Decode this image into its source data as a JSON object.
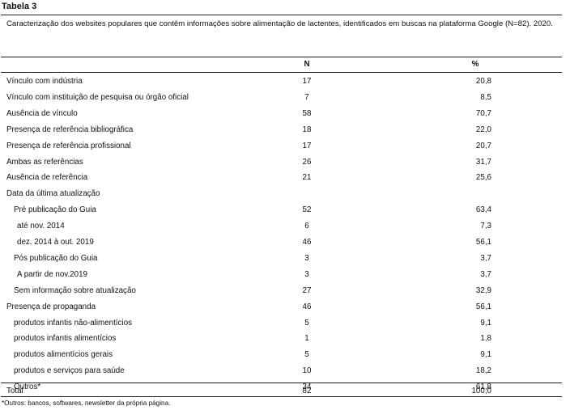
{
  "title": "Tabela 3",
  "caption": "Caracterização dos websites populares que contêm informações sobre alimentação de lactentes, identificados em buscas na plataforma Google (N=82). 2020.",
  "columns": {
    "n": "N",
    "pct": "%"
  },
  "rows": [
    {
      "label": "Vínculo com indústria",
      "n": "17",
      "pct": "20,8",
      "indent": 0
    },
    {
      "label": "Vínculo com instituição de pesquisa ou órgão oficial",
      "n": "7",
      "pct": "8,5",
      "indent": 0
    },
    {
      "label": "Ausência de vínculo",
      "n": "58",
      "pct": "70,7",
      "indent": 0
    },
    {
      "label": "Presença de referência bibliográfica",
      "n": "18",
      "pct": "22,0",
      "indent": 0
    },
    {
      "label": "Presença de referência profissional",
      "n": "17",
      "pct": "20,7",
      "indent": 0
    },
    {
      "label": "Ambas as referências",
      "n": "26",
      "pct": "31,7",
      "indent": 0
    },
    {
      "label": "Ausência de referência",
      "n": "21",
      "pct": "25,6",
      "indent": 0
    },
    {
      "label": "Data da última atualização",
      "n": "",
      "pct": "",
      "indent": 0
    },
    {
      "label": "Pré publicação do Guia",
      "n": "52",
      "pct": "63,4",
      "indent": 1
    },
    {
      "label": "até nov. 2014",
      "n": "6",
      "pct": "7,3",
      "indent": 2
    },
    {
      "label": "dez. 2014 à out. 2019",
      "n": "46",
      "pct": "56,1",
      "indent": 2
    },
    {
      "label": "Pós publicação do Guia",
      "n": "3",
      "pct": "3,7",
      "indent": 1
    },
    {
      "label": "A partir de nov.2019",
      "n": "3",
      "pct": "3,7",
      "indent": 2
    },
    {
      "label": "Sem informação sobre atualização",
      "n": "27",
      "pct": "32,9",
      "indent": 1
    },
    {
      "label": "Presença de propaganda",
      "n": "46",
      "pct": "56,1",
      "indent": 0
    },
    {
      "label": "produtos infantis não-alimentícios",
      "n": "5",
      "pct": "9,1",
      "indent": 1
    },
    {
      "label": "produtos infantis alimentícios",
      "n": "1",
      "pct": "1,8",
      "indent": 1
    },
    {
      "label": "produtos alimentícios gerais",
      "n": "5",
      "pct": "9,1",
      "indent": 1
    },
    {
      "label": "produtos e serviços para saúde",
      "n": "10",
      "pct": "18,2",
      "indent": 1
    },
    {
      "label": "Outros*",
      "n": "34",
      "pct": "61,8",
      "indent": 1
    },
    {
      "label": "Total",
      "n": "82",
      "pct": "100,0",
      "indent": 0
    }
  ],
  "footnote": "*Outros: bancos, softwares, newsletter da própria página."
}
